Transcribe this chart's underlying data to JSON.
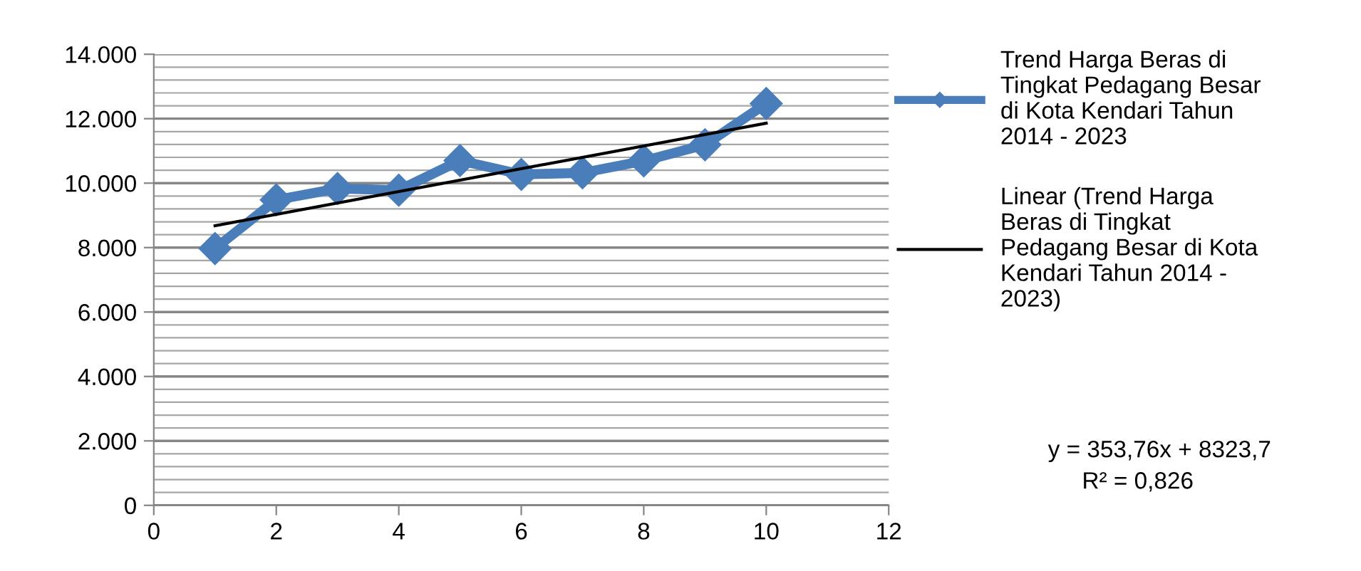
{
  "chart_data": {
    "type": "line",
    "x": [
      1,
      2,
      3,
      4,
      5,
      6,
      7,
      8,
      9,
      10
    ],
    "series": [
      {
        "name": "Trend Harga Beras di Tingkat Pedagang Besar di Kota Kendari Tahun 2014 - 2023",
        "color": "#4a7ebb",
        "marker": "diamond",
        "values": [
          7970,
          9480,
          9830,
          9780,
          10700,
          10270,
          10320,
          10690,
          11190,
          12470
        ]
      },
      {
        "name": "Linear (Trend Harga Beras di Tingkat Pedagang Besar di Kota Kendari Tahun 2014 - 2023)",
        "color": "#000000",
        "marker": "none",
        "x": [
          1,
          10
        ],
        "values": [
          8677,
          11861
        ]
      }
    ],
    "xlim": [
      0,
      12
    ],
    "xticks": [
      0,
      2,
      4,
      6,
      8,
      10,
      12
    ],
    "ylim": [
      0,
      14000
    ],
    "yticks": [
      {
        "value": 0,
        "label": "0"
      },
      {
        "value": 2000,
        "label": "2.000"
      },
      {
        "value": 4000,
        "label": "4.000"
      },
      {
        "value": 6000,
        "label": "6.000"
      },
      {
        "value": 8000,
        "label": "8.000"
      },
      {
        "value": 10000,
        "label": "10.000"
      },
      {
        "value": 12000,
        "label": "12.000"
      },
      {
        "value": 14000,
        "label": "14.000"
      }
    ],
    "grid": "y",
    "legend": "right",
    "annotations": [
      "y = 353,76x + 8323,7",
      "R² = 0,826"
    ]
  }
}
